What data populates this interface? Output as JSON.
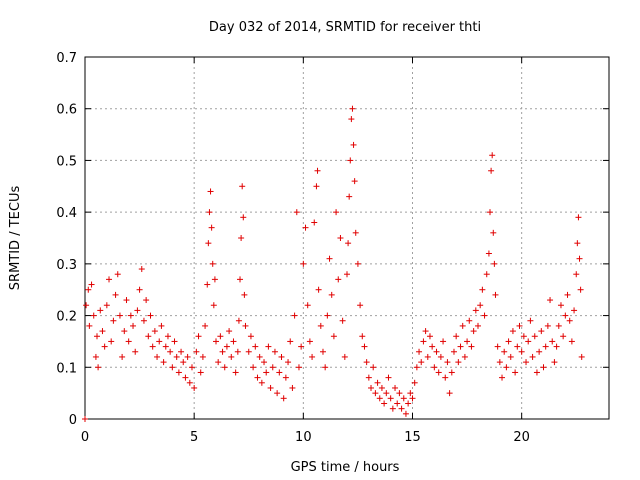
{
  "chart_data": {
    "type": "scatter",
    "title": "Day 032 of 2014, SRMTID for receiver thti",
    "xlabel": "GPS time / hours",
    "ylabel": "SRMTID / TECUs",
    "xlim": [
      0,
      24
    ],
    "ylim": [
      0,
      0.7
    ],
    "x_ticks": [
      0,
      5,
      10,
      15,
      20
    ],
    "x_tick_labels": [
      "0",
      "5",
      "10",
      "15",
      "20"
    ],
    "y_ticks": [
      0,
      0.1,
      0.2,
      0.3,
      0.4,
      0.5,
      0.6,
      0.7
    ],
    "y_tick_labels": [
      "0",
      "0.1",
      "0.2",
      "0.3",
      "0.4",
      "0.5",
      "0.6",
      "0.7"
    ],
    "grid": true,
    "marker": "+",
    "color": "#e00000",
    "series": [
      {
        "name": "SRMTID",
        "points": [
          [
            0.0,
            0.0
          ],
          [
            0.05,
            0.22
          ],
          [
            0.15,
            0.25
          ],
          [
            0.2,
            0.18
          ],
          [
            0.3,
            0.26
          ],
          [
            0.4,
            0.2
          ],
          [
            0.5,
            0.12
          ],
          [
            0.55,
            0.16
          ],
          [
            0.6,
            0.1
          ],
          [
            0.7,
            0.21
          ],
          [
            0.8,
            0.17
          ],
          [
            0.9,
            0.14
          ],
          [
            1.0,
            0.22
          ],
          [
            1.1,
            0.27
          ],
          [
            1.2,
            0.15
          ],
          [
            1.3,
            0.19
          ],
          [
            1.4,
            0.24
          ],
          [
            1.5,
            0.28
          ],
          [
            1.6,
            0.2
          ],
          [
            1.7,
            0.12
          ],
          [
            1.8,
            0.17
          ],
          [
            1.9,
            0.23
          ],
          [
            2.0,
            0.15
          ],
          [
            2.1,
            0.2
          ],
          [
            2.2,
            0.18
          ],
          [
            2.3,
            0.13
          ],
          [
            2.4,
            0.21
          ],
          [
            2.5,
            0.25
          ],
          [
            2.6,
            0.29
          ],
          [
            2.7,
            0.19
          ],
          [
            2.8,
            0.23
          ],
          [
            2.9,
            0.16
          ],
          [
            3.0,
            0.2
          ],
          [
            3.1,
            0.14
          ],
          [
            3.2,
            0.17
          ],
          [
            3.3,
            0.12
          ],
          [
            3.4,
            0.15
          ],
          [
            3.5,
            0.18
          ],
          [
            3.6,
            0.11
          ],
          [
            3.7,
            0.14
          ],
          [
            3.8,
            0.16
          ],
          [
            3.9,
            0.13
          ],
          [
            4.0,
            0.1
          ],
          [
            4.1,
            0.15
          ],
          [
            4.2,
            0.12
          ],
          [
            4.3,
            0.09
          ],
          [
            4.4,
            0.13
          ],
          [
            4.5,
            0.11
          ],
          [
            4.6,
            0.08
          ],
          [
            4.7,
            0.12
          ],
          [
            4.8,
            0.07
          ],
          [
            4.9,
            0.1
          ],
          [
            5.0,
            0.06
          ],
          [
            5.1,
            0.13
          ],
          [
            5.2,
            0.16
          ],
          [
            5.3,
            0.09
          ],
          [
            5.4,
            0.12
          ],
          [
            5.5,
            0.18
          ],
          [
            5.6,
            0.26
          ],
          [
            5.65,
            0.34
          ],
          [
            5.7,
            0.4
          ],
          [
            5.75,
            0.44
          ],
          [
            5.8,
            0.37
          ],
          [
            5.85,
            0.3
          ],
          [
            5.9,
            0.22
          ],
          [
            5.95,
            0.27
          ],
          [
            6.0,
            0.15
          ],
          [
            6.1,
            0.11
          ],
          [
            6.2,
            0.16
          ],
          [
            6.3,
            0.13
          ],
          [
            6.4,
            0.1
          ],
          [
            6.5,
            0.14
          ],
          [
            6.6,
            0.17
          ],
          [
            6.7,
            0.12
          ],
          [
            6.8,
            0.15
          ],
          [
            6.9,
            0.09
          ],
          [
            7.0,
            0.13
          ],
          [
            7.05,
            0.19
          ],
          [
            7.1,
            0.27
          ],
          [
            7.15,
            0.35
          ],
          [
            7.2,
            0.45
          ],
          [
            7.25,
            0.39
          ],
          [
            7.3,
            0.24
          ],
          [
            7.35,
            0.18
          ],
          [
            7.5,
            0.13
          ],
          [
            7.6,
            0.16
          ],
          [
            7.7,
            0.1
          ],
          [
            7.8,
            0.14
          ],
          [
            7.9,
            0.08
          ],
          [
            8.0,
            0.12
          ],
          [
            8.1,
            0.07
          ],
          [
            8.2,
            0.11
          ],
          [
            8.3,
            0.09
          ],
          [
            8.4,
            0.14
          ],
          [
            8.5,
            0.06
          ],
          [
            8.6,
            0.1
          ],
          [
            8.7,
            0.13
          ],
          [
            8.8,
            0.05
          ],
          [
            8.9,
            0.09
          ],
          [
            9.0,
            0.12
          ],
          [
            9.1,
            0.04
          ],
          [
            9.2,
            0.08
          ],
          [
            9.3,
            0.11
          ],
          [
            9.4,
            0.15
          ],
          [
            9.5,
            0.06
          ],
          [
            9.6,
            0.2
          ],
          [
            9.7,
            0.4
          ],
          [
            9.8,
            0.1
          ],
          [
            9.9,
            0.14
          ],
          [
            10.0,
            0.3
          ],
          [
            10.1,
            0.37
          ],
          [
            10.2,
            0.22
          ],
          [
            10.3,
            0.15
          ],
          [
            10.4,
            0.12
          ],
          [
            10.5,
            0.38
          ],
          [
            10.6,
            0.45
          ],
          [
            10.65,
            0.48
          ],
          [
            10.7,
            0.25
          ],
          [
            10.8,
            0.18
          ],
          [
            10.9,
            0.13
          ],
          [
            11.0,
            0.1
          ],
          [
            11.1,
            0.2
          ],
          [
            11.2,
            0.31
          ],
          [
            11.3,
            0.24
          ],
          [
            11.4,
            0.16
          ],
          [
            11.5,
            0.4
          ],
          [
            11.6,
            0.27
          ],
          [
            11.7,
            0.35
          ],
          [
            11.8,
            0.19
          ],
          [
            11.9,
            0.12
          ],
          [
            12.0,
            0.28
          ],
          [
            12.05,
            0.34
          ],
          [
            12.1,
            0.43
          ],
          [
            12.15,
            0.5
          ],
          [
            12.2,
            0.58
          ],
          [
            12.25,
            0.6
          ],
          [
            12.3,
            0.53
          ],
          [
            12.35,
            0.46
          ],
          [
            12.4,
            0.36
          ],
          [
            12.5,
            0.3
          ],
          [
            12.6,
            0.22
          ],
          [
            12.7,
            0.16
          ],
          [
            12.8,
            0.14
          ],
          [
            12.9,
            0.11
          ],
          [
            13.0,
            0.08
          ],
          [
            13.1,
            0.06
          ],
          [
            13.2,
            0.1
          ],
          [
            13.3,
            0.05
          ],
          [
            13.4,
            0.07
          ],
          [
            13.5,
            0.04
          ],
          [
            13.6,
            0.06
          ],
          [
            13.7,
            0.03
          ],
          [
            13.8,
            0.05
          ],
          [
            13.9,
            0.08
          ],
          [
            14.0,
            0.04
          ],
          [
            14.1,
            0.02
          ],
          [
            14.2,
            0.06
          ],
          [
            14.3,
            0.03
          ],
          [
            14.4,
            0.05
          ],
          [
            14.5,
            0.02
          ],
          [
            14.6,
            0.04
          ],
          [
            14.7,
            0.01
          ],
          [
            14.8,
            0.03
          ],
          [
            14.9,
            0.05
          ],
          [
            15.0,
            0.04
          ],
          [
            15.1,
            0.07
          ],
          [
            15.2,
            0.1
          ],
          [
            15.3,
            0.13
          ],
          [
            15.4,
            0.11
          ],
          [
            15.5,
            0.15
          ],
          [
            15.6,
            0.17
          ],
          [
            15.7,
            0.12
          ],
          [
            15.8,
            0.16
          ],
          [
            15.9,
            0.14
          ],
          [
            16.0,
            0.1
          ],
          [
            16.1,
            0.13
          ],
          [
            16.2,
            0.09
          ],
          [
            16.3,
            0.12
          ],
          [
            16.4,
            0.15
          ],
          [
            16.5,
            0.08
          ],
          [
            16.6,
            0.11
          ],
          [
            16.7,
            0.05
          ],
          [
            16.8,
            0.09
          ],
          [
            16.9,
            0.13
          ],
          [
            17.0,
            0.16
          ],
          [
            17.1,
            0.11
          ],
          [
            17.2,
            0.14
          ],
          [
            17.3,
            0.18
          ],
          [
            17.4,
            0.12
          ],
          [
            17.5,
            0.15
          ],
          [
            17.6,
            0.19
          ],
          [
            17.7,
            0.14
          ],
          [
            17.8,
            0.17
          ],
          [
            17.9,
            0.21
          ],
          [
            18.0,
            0.18
          ],
          [
            18.1,
            0.22
          ],
          [
            18.2,
            0.25
          ],
          [
            18.3,
            0.2
          ],
          [
            18.4,
            0.28
          ],
          [
            18.5,
            0.32
          ],
          [
            18.55,
            0.4
          ],
          [
            18.6,
            0.48
          ],
          [
            18.65,
            0.51
          ],
          [
            18.7,
            0.36
          ],
          [
            18.75,
            0.3
          ],
          [
            18.8,
            0.24
          ],
          [
            18.9,
            0.14
          ],
          [
            19.0,
            0.11
          ],
          [
            19.1,
            0.08
          ],
          [
            19.2,
            0.13
          ],
          [
            19.3,
            0.1
          ],
          [
            19.4,
            0.15
          ],
          [
            19.5,
            0.12
          ],
          [
            19.6,
            0.17
          ],
          [
            19.7,
            0.09
          ],
          [
            19.8,
            0.14
          ],
          [
            19.9,
            0.18
          ],
          [
            20.0,
            0.13
          ],
          [
            20.1,
            0.16
          ],
          [
            20.2,
            0.11
          ],
          [
            20.3,
            0.15
          ],
          [
            20.4,
            0.19
          ],
          [
            20.5,
            0.12
          ],
          [
            20.6,
            0.16
          ],
          [
            20.7,
            0.09
          ],
          [
            20.8,
            0.13
          ],
          [
            20.9,
            0.17
          ],
          [
            21.0,
            0.1
          ],
          [
            21.1,
            0.14
          ],
          [
            21.2,
            0.18
          ],
          [
            21.3,
            0.23
          ],
          [
            21.4,
            0.15
          ],
          [
            21.5,
            0.11
          ],
          [
            21.6,
            0.14
          ],
          [
            21.7,
            0.18
          ],
          [
            21.8,
            0.22
          ],
          [
            21.9,
            0.16
          ],
          [
            22.0,
            0.2
          ],
          [
            22.1,
            0.24
          ],
          [
            22.2,
            0.19
          ],
          [
            22.3,
            0.15
          ],
          [
            22.4,
            0.21
          ],
          [
            22.5,
            0.28
          ],
          [
            22.55,
            0.34
          ],
          [
            22.6,
            0.39
          ],
          [
            22.65,
            0.31
          ],
          [
            22.7,
            0.25
          ],
          [
            22.75,
            0.12
          ]
        ]
      }
    ]
  }
}
